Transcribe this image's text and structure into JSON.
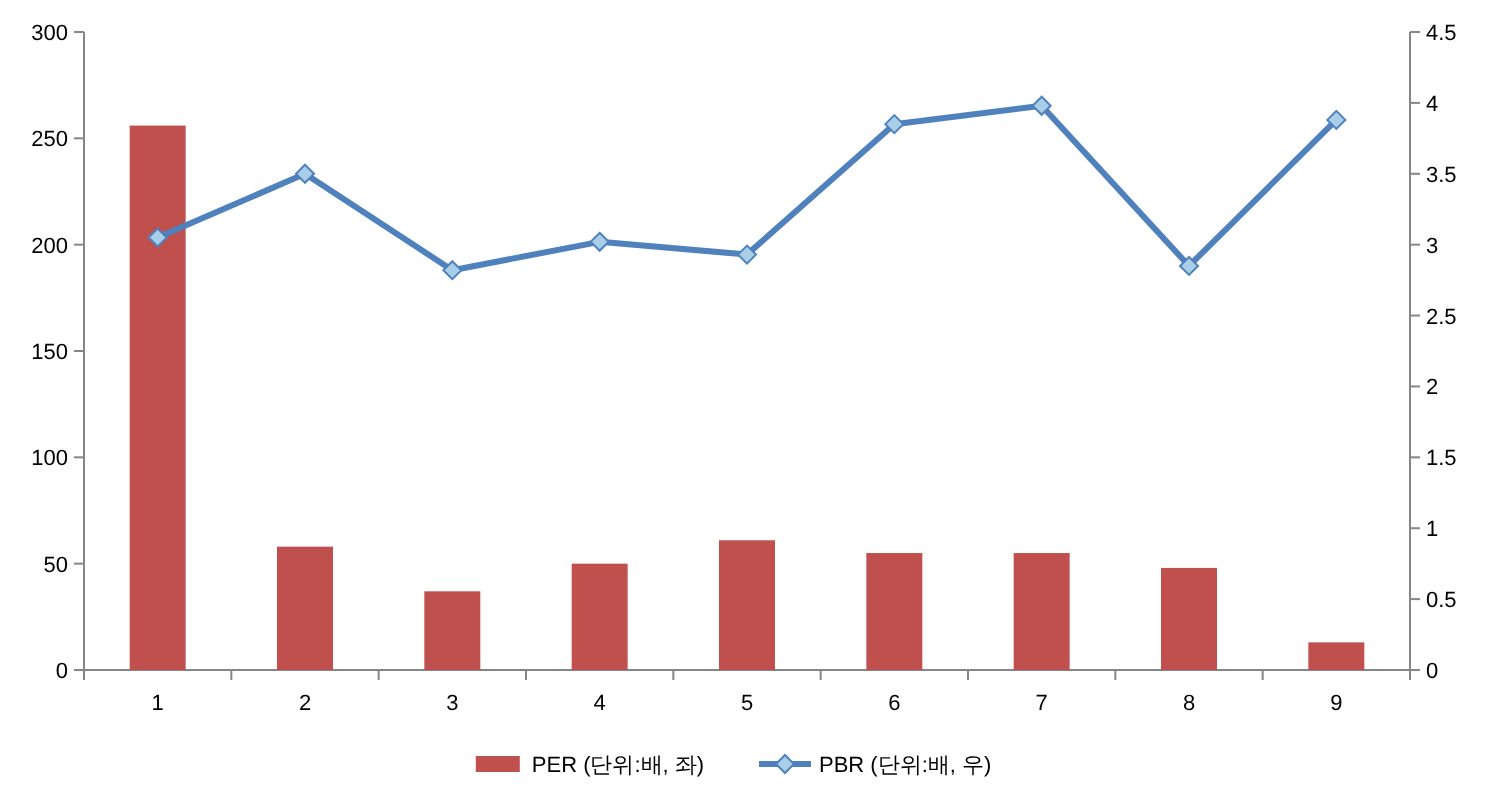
{
  "chart_data": {
    "type": "bar",
    "categories": [
      "1",
      "2",
      "3",
      "4",
      "5",
      "6",
      "7",
      "8",
      "9"
    ],
    "series": [
      {
        "name": "PER (단위:배, 좌)",
        "color": "#c0504d",
        "values": [
          256,
          58,
          37,
          50,
          61,
          55,
          55,
          48,
          13
        ]
      },
      {
        "name": "PBR (단위:배, 우)",
        "type": "line",
        "axis": "y2",
        "color": "#4f81bd",
        "marker": "diamond",
        "values": [
          3.05,
          3.5,
          2.82,
          3.02,
          2.93,
          3.85,
          3.98,
          2.85,
          3.88
        ]
      }
    ],
    "ylim": [
      0,
      300
    ],
    "yticks": [
      0,
      50,
      100,
      150,
      200,
      250,
      300
    ],
    "y2lim": [
      0,
      4.5
    ],
    "y2ticks": [
      0,
      0.5,
      1,
      1.5,
      2,
      2.5,
      3,
      3.5,
      4,
      4.5
    ],
    "legend": "bottom"
  }
}
